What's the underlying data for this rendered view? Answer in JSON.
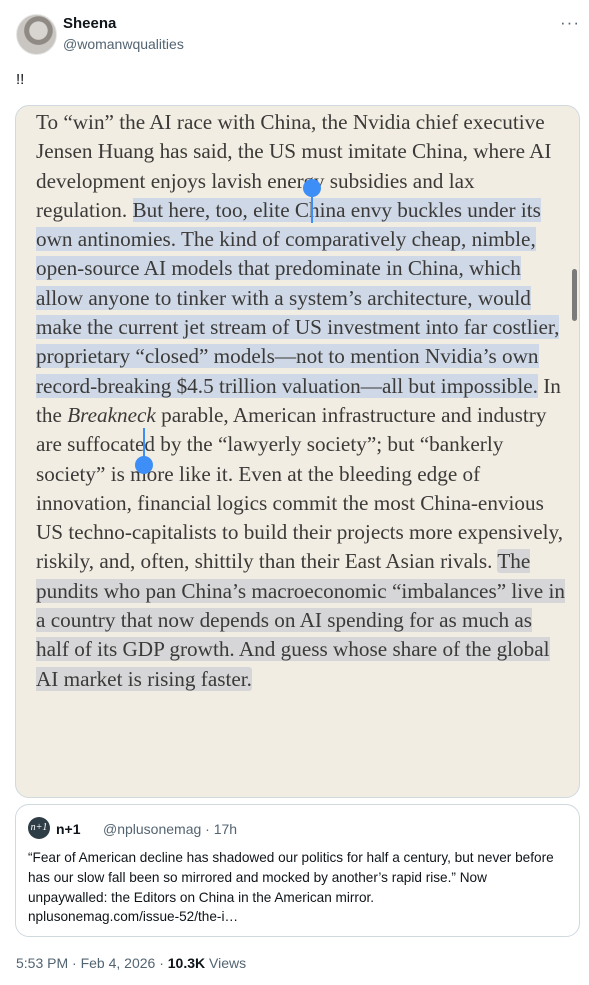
{
  "author": {
    "name": "Sheena",
    "handle": "@womanwqualities"
  },
  "more_label": "···",
  "tweet_text": "!!",
  "passage": {
    "pre": "To “win” the AI race with China, the Nvidia chief executive Jensen Huang has said, the US must imitate China, where AI development enjoys lavish energy subsidies and lax regulation. ",
    "selected": "But here, too, elite China envy buckles under its own antinomies. The kind of comparatively cheap, nimble, open-source AI models that predominate in China, which allow anyone to tinker with a system’s architecture, would make the current jet stream of US investment into far costlier, proprietary “closed” models—not to mention Nvidia’s own record-breaking $4.5 trillion valuation—all but impossible.",
    "mid_a": " In the ",
    "mid_italic": "Breakneck",
    "mid_b": " parable, American infrastructure and industry are suffocated by the “lawyerly society”; but “bankerly society” is more like it. Even at the bleeding edge of innovation, financial logics commit the most China-envious US techno-capitalists to build their projects more expensively, riskily, and, often, shittily than their East Asian rivals. ",
    "highlighted": "The pundits who pan China’s macroeconomic “imbalances” live in a country that now depends on AI spending for as much as half of its GDP growth. And guess whose share of the global AI market is rising faster."
  },
  "quote": {
    "avatar_label": "n+1",
    "name": "n+1",
    "handle_time": "@nplusonemag · 17h",
    "text": "“Fear of American decline has shadowed our politics for half a century, but never before has our slow fall been so mirrored and mocked by another’s rapid rise.” Now unpaywalled: the Editors on China in the American mirror.",
    "link": "nplusonemag.com/issue-52/the-i…"
  },
  "meta": {
    "time_date": "5:53 PM · Feb 4, 2026 · ",
    "views_count": "10.3K",
    "views_label": " Views"
  }
}
